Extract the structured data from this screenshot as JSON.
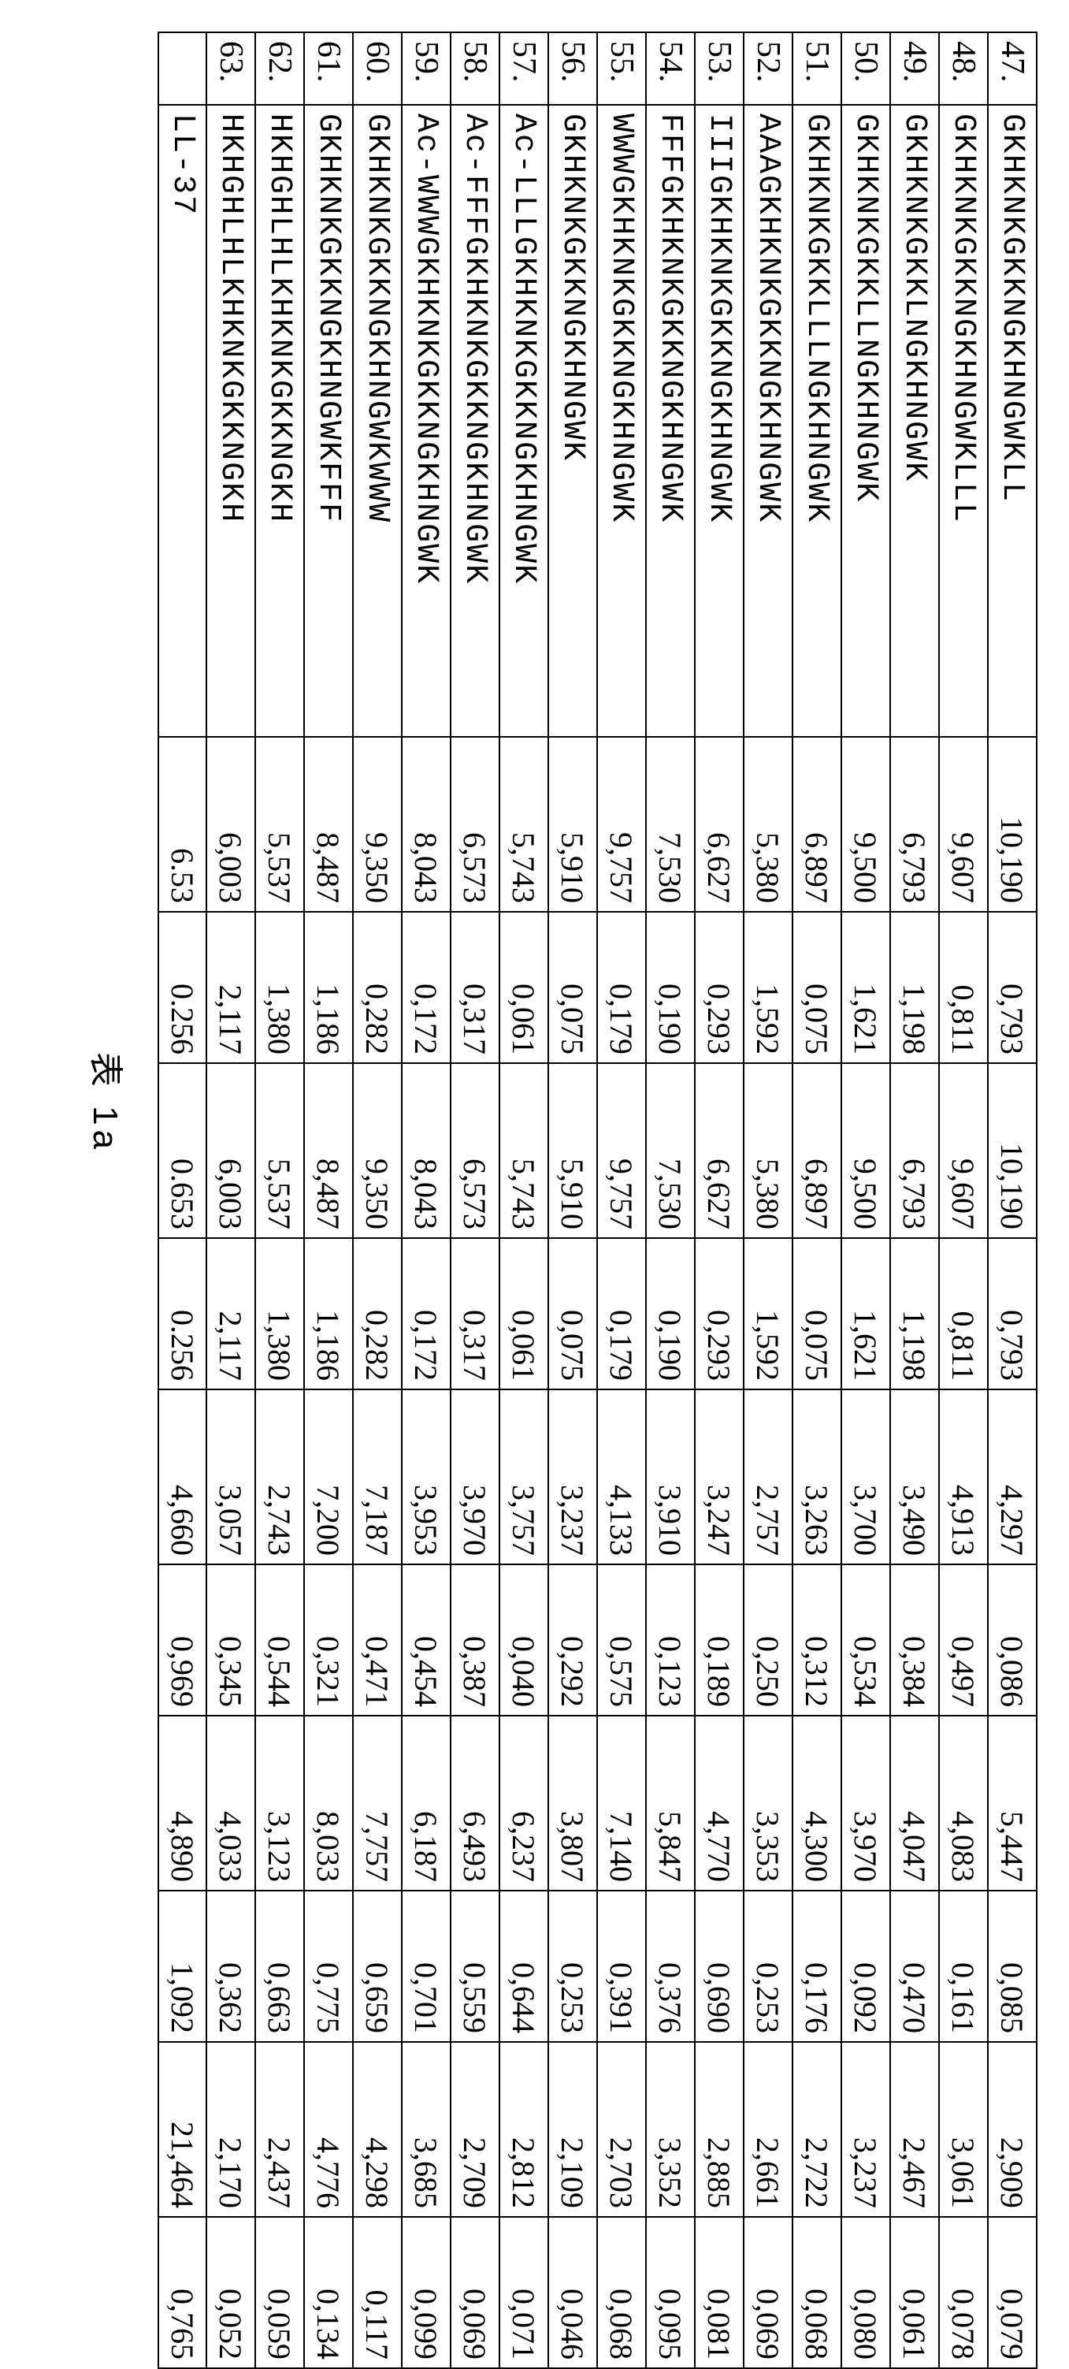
{
  "caption": "表 1a",
  "columns": {
    "count": 10,
    "types": [
      "idx",
      "seq",
      "num",
      "num",
      "num",
      "num",
      "num",
      "num",
      "num",
      "num",
      "num",
      "num"
    ]
  },
  "rows": [
    {
      "idx": "47.",
      "seq": "GKHKNKGKKNGKHNGWKLL",
      "v": [
        "10,190",
        "0,793",
        "10,190",
        "0,793",
        "4,297",
        "0,086",
        "5,447",
        "0,085",
        "2,909",
        "0,079"
      ]
    },
    {
      "idx": "48.",
      "seq": "GKHKNKGKKNGKHNGWKLLL",
      "v": [
        "9,607",
        "0,811",
        "9,607",
        "0,811",
        "4,913",
        "0,497",
        "4,083",
        "0,161",
        "3,061",
        "0,078"
      ]
    },
    {
      "idx": "49.",
      "seq": "GKHKNKGKKLNGKHNGWK",
      "v": [
        "6,793",
        "1,198",
        "6,793",
        "1,198",
        "3,490",
        "0,384",
        "4,047",
        "0,470",
        "2,467",
        "0,061"
      ]
    },
    {
      "idx": "50.",
      "seq": "GKHKNKGKKLLNGKHNGWK",
      "v": [
        "9,500",
        "1,621",
        "9,500",
        "1,621",
        "3,700",
        "0,534",
        "3,970",
        "0,092",
        "3,237",
        "0,080"
      ]
    },
    {
      "idx": "51.",
      "seq": "GKHKNKGKKLLLNGKHNGWK",
      "v": [
        "6,897",
        "0,075",
        "6,897",
        "0,075",
        "3,263",
        "0,312",
        "4,300",
        "0,176",
        "2,722",
        "0,068"
      ]
    },
    {
      "idx": "52.",
      "seq": "AAAGKHKNKGKKNGKHNGWK",
      "v": [
        "5,380",
        "1,592",
        "5,380",
        "1,592",
        "2,757",
        "0,250",
        "3,353",
        "0,253",
        "2,661",
        "0,069"
      ]
    },
    {
      "idx": "53.",
      "seq": "IIIGKHKNKGKKNGKHNGWK",
      "v": [
        "6,627",
        "0,293",
        "6,627",
        "0,293",
        "3,247",
        "0,189",
        "4,770",
        "0,690",
        "2,885",
        "0,081"
      ]
    },
    {
      "idx": "54.",
      "seq": "FFFGKHKNKGKKNGKHNGWK",
      "v": [
        "7,530",
        "0,190",
        "7,530",
        "0,190",
        "3,910",
        "0,123",
        "5,847",
        "0,376",
        "3,352",
        "0,095"
      ]
    },
    {
      "idx": "55.",
      "seq": "WWWGKHKNKGKKNGKHNGWK",
      "v": [
        "9,757",
        "0,179",
        "9,757",
        "0,179",
        "4,133",
        "0,575",
        "7,140",
        "0,391",
        "2,703",
        "0,068"
      ]
    },
    {
      "idx": "56.",
      "seq": "GKHKNKGKKNGKHNGWK",
      "v": [
        "5,910",
        "0,075",
        "5,910",
        "0,075",
        "3,237",
        "0,292",
        "3,807",
        "0,253",
        "2,109",
        "0,046"
      ]
    },
    {
      "idx": "57.",
      "seq": "Ac-LLLGKHKNKGKKNGKHNGWK",
      "v": [
        "5,743",
        "0,061",
        "5,743",
        "0,061",
        "3,757",
        "0,040",
        "6,237",
        "0,644",
        "2,812",
        "0,071"
      ]
    },
    {
      "idx": "58.",
      "seq": "Ac-FFFGKHKNKGKKNGKHNGWK",
      "v": [
        "6,573",
        "0,317",
        "6,573",
        "0,317",
        "3,970",
        "0,387",
        "6,493",
        "0,559",
        "2,709",
        "0,069"
      ]
    },
    {
      "idx": "59.",
      "seq": "Ac-WWWGKHKNKGKKNGKHNGWK",
      "v": [
        "8,043",
        "0,172",
        "8,043",
        "0,172",
        "3,953",
        "0,454",
        "6,187",
        "0,701",
        "3,685",
        "0,099"
      ]
    },
    {
      "idx": "60.",
      "seq": "GKHKNKGKKNGKHNGWKWWW",
      "v": [
        "9,350",
        "0,282",
        "9,350",
        "0,282",
        "7,187",
        "0,471",
        "7,757",
        "0,659",
        "4,298",
        "0,117"
      ]
    },
    {
      "idx": "61.",
      "seq": "GKHKNKGKKNGKHNGWKFFF",
      "v": [
        "8,487",
        "1,186",
        "8,487",
        "1,186",
        "7,200",
        "0,321",
        "8,033",
        "0,775",
        "4,776",
        "0,134"
      ]
    },
    {
      "idx": "62.",
      "seq": "HKHGHLHLKHKNKGKKNGKH",
      "v": [
        "5,537",
        "1,380",
        "5,537",
        "1,380",
        "2,743",
        "0,544",
        "3,123",
        "0,663",
        "2,437",
        "0,059"
      ]
    },
    {
      "idx": "63.",
      "seq": "HKHGHLHLKHKNKGKKNGKH",
      "v": [
        "6,003",
        "2,117",
        "6,003",
        "2,117",
        "3,057",
        "0,345",
        "4,033",
        "0,362",
        "2,170",
        "0,052"
      ]
    },
    {
      "idx": "",
      "seq": "LL-37",
      "v": [
        "6.53",
        "0.256",
        "0.653",
        "0.256",
        "4,660",
        "0,969",
        "4,890",
        "1,092",
        "21,464",
        "0,765"
      ]
    }
  ]
}
